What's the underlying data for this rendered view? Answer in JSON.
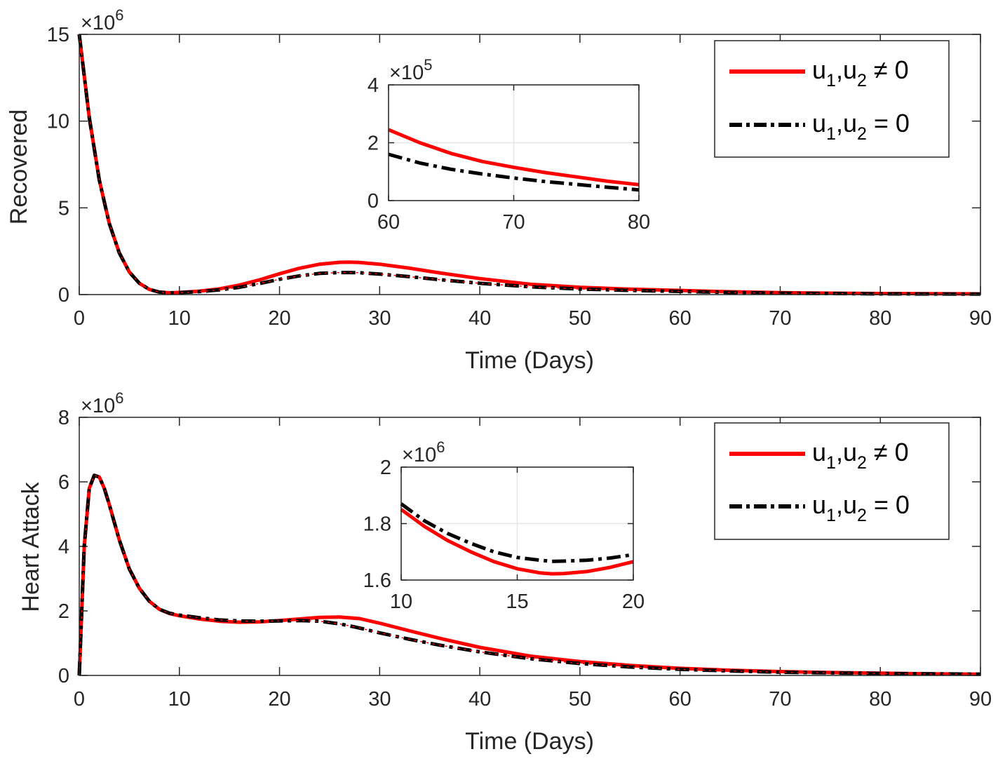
{
  "chart_data": [
    {
      "type": "line",
      "id": "top",
      "ylabel": "Recovered",
      "xlabel": "Time (Days)",
      "xlim": [
        0,
        90
      ],
      "ylim": [
        0,
        15
      ],
      "xticks": [
        "0",
        "10",
        "20",
        "30",
        "40",
        "50",
        "60",
        "70",
        "80",
        "90"
      ],
      "yticks": [
        "0",
        "5",
        "10",
        "15"
      ],
      "exponent_base": "×10",
      "exponent_power": "6",
      "legend": [
        {
          "base": "u",
          "sub1": "1",
          "mid": ",u",
          "sub2": "2",
          "rel": " ≠ 0"
        },
        {
          "base": "u",
          "sub1": "1",
          "mid": ",u",
          "sub2": "2",
          "rel": " = 0"
        }
      ],
      "series": [
        {
          "name": "u1,u2 ≠ 0",
          "color": "#ff0000",
          "style": "solid",
          "x": [
            0,
            1,
            2,
            3,
            4,
            5,
            6,
            7,
            8,
            9,
            10,
            12,
            14,
            16,
            18,
            20,
            22,
            24,
            26,
            27,
            28,
            30,
            33,
            36,
            40,
            45,
            50,
            55,
            60,
            65,
            70,
            75,
            80,
            85,
            90
          ],
          "y": [
            15,
            10.2,
            6.6,
            4.1,
            2.4,
            1.3,
            0.65,
            0.3,
            0.14,
            0.1,
            0.12,
            0.2,
            0.33,
            0.55,
            0.85,
            1.2,
            1.52,
            1.75,
            1.86,
            1.87,
            1.85,
            1.75,
            1.52,
            1.25,
            0.92,
            0.6,
            0.42,
            0.31,
            0.24,
            0.16,
            0.11,
            0.08,
            0.06,
            0.05,
            0.04
          ]
        },
        {
          "name": "u1,u2 = 0",
          "color": "#000000",
          "style": "dashdot",
          "x": [
            0,
            1,
            2,
            3,
            4,
            5,
            6,
            7,
            8,
            9,
            10,
            12,
            14,
            16,
            18,
            20,
            22,
            24,
            26,
            27,
            28,
            30,
            33,
            36,
            40,
            45,
            50,
            55,
            60,
            65,
            70,
            75,
            80,
            85,
            90
          ],
          "y": [
            15,
            10.2,
            6.6,
            4.1,
            2.4,
            1.3,
            0.65,
            0.3,
            0.14,
            0.1,
            0.11,
            0.17,
            0.27,
            0.42,
            0.64,
            0.88,
            1.08,
            1.22,
            1.27,
            1.27,
            1.26,
            1.18,
            1.03,
            0.86,
            0.65,
            0.45,
            0.32,
            0.24,
            0.18,
            0.12,
            0.08,
            0.06,
            0.04,
            0.035,
            0.03
          ]
        }
      ],
      "inset": {
        "xlim": [
          60,
          80
        ],
        "ylim": [
          0,
          4
        ],
        "xticks": [
          "60",
          "70",
          "80"
        ],
        "yticks": [
          "0",
          "2",
          "4"
        ],
        "exponent_base": "×10",
        "exponent_power": "5",
        "series": [
          {
            "color": "#ff0000",
            "style": "solid",
            "x": [
              60,
              62.5,
              65,
              67.5,
              70,
              72.5,
              75,
              77.5,
              80
            ],
            "y": [
              2.45,
              2.0,
              1.63,
              1.35,
              1.15,
              0.97,
              0.82,
              0.67,
              0.55
            ]
          },
          {
            "color": "#000000",
            "style": "dashdot",
            "x": [
              60,
              62.5,
              65,
              67.5,
              70,
              72.5,
              75,
              77.5,
              80
            ],
            "y": [
              1.6,
              1.3,
              1.08,
              0.92,
              0.78,
              0.66,
              0.56,
              0.46,
              0.37
            ]
          }
        ]
      }
    },
    {
      "type": "line",
      "id": "bottom",
      "ylabel": "Heart Attack",
      "xlabel": "Time (Days)",
      "xlim": [
        0,
        90
      ],
      "ylim": [
        0,
        8
      ],
      "xticks": [
        "0",
        "10",
        "20",
        "30",
        "40",
        "50",
        "60",
        "70",
        "80",
        "90"
      ],
      "yticks": [
        "0",
        "2",
        "4",
        "6",
        "8"
      ],
      "exponent_base": "×10",
      "exponent_power": "6",
      "legend": [
        {
          "base": "u",
          "sub1": "1",
          "mid": ",u",
          "sub2": "2",
          "rel": " ≠ 0"
        },
        {
          "base": "u",
          "sub1": "1",
          "mid": ",u",
          "sub2": "2",
          "rel": " = 0"
        }
      ],
      "series": [
        {
          "name": "u1,u2 ≠ 0",
          "color": "#ff0000",
          "style": "solid",
          "x": [
            0,
            0.5,
            1,
            1.5,
            2,
            2.5,
            3,
            4,
            5,
            6,
            7,
            8,
            9,
            10,
            12,
            14,
            16,
            18,
            20,
            22,
            24,
            26,
            28,
            30,
            33,
            36,
            40,
            45,
            50,
            55,
            60,
            65,
            70,
            75,
            80,
            85,
            90
          ],
          "y": [
            0,
            4.0,
            5.8,
            6.2,
            6.15,
            5.8,
            5.3,
            4.2,
            3.3,
            2.7,
            2.3,
            2.05,
            1.92,
            1.85,
            1.75,
            1.68,
            1.65,
            1.66,
            1.7,
            1.75,
            1.8,
            1.81,
            1.76,
            1.62,
            1.38,
            1.15,
            0.87,
            0.6,
            0.43,
            0.31,
            0.22,
            0.16,
            0.12,
            0.09,
            0.07,
            0.05,
            0.04
          ]
        },
        {
          "name": "u1,u2 = 0",
          "color": "#000000",
          "style": "dashdot",
          "x": [
            0,
            0.5,
            1,
            1.5,
            2,
            2.5,
            3,
            4,
            5,
            6,
            7,
            8,
            9,
            10,
            12,
            14,
            16,
            18,
            20,
            22,
            24,
            26,
            28,
            30,
            33,
            36,
            40,
            45,
            50,
            55,
            60,
            65,
            70,
            75,
            80,
            85,
            90
          ],
          "y": [
            0,
            4.0,
            5.8,
            6.2,
            6.15,
            5.8,
            5.3,
            4.2,
            3.3,
            2.7,
            2.3,
            2.05,
            1.93,
            1.87,
            1.79,
            1.72,
            1.69,
            1.68,
            1.69,
            1.7,
            1.68,
            1.6,
            1.47,
            1.32,
            1.12,
            0.94,
            0.73,
            0.52,
            0.37,
            0.26,
            0.19,
            0.14,
            0.1,
            0.08,
            0.06,
            0.05,
            0.04
          ]
        }
      ],
      "inset": {
        "xlim": [
          10,
          20
        ],
        "ylim": [
          1.6,
          2
        ],
        "xticks": [
          "10",
          "15",
          "20"
        ],
        "yticks": [
          "1.6",
          "1.8",
          "2"
        ],
        "exponent_base": "×10",
        "exponent_power": "6",
        "series": [
          {
            "color": "#ff0000",
            "style": "solid",
            "x": [
              10,
              11,
              12,
              13,
              14,
              15,
              16,
              16.5,
              17,
              18,
              19,
              20
            ],
            "y": [
              1.85,
              1.79,
              1.74,
              1.7,
              1.665,
              1.64,
              1.625,
              1.622,
              1.623,
              1.63,
              1.645,
              1.665
            ]
          },
          {
            "color": "#000000",
            "style": "dashdot",
            "x": [
              10,
              11,
              12,
              13,
              14,
              15,
              16,
              16.5,
              17,
              18,
              19,
              20
            ],
            "y": [
              1.87,
              1.81,
              1.765,
              1.73,
              1.7,
              1.68,
              1.67,
              1.666,
              1.667,
              1.67,
              1.678,
              1.69
            ]
          }
        ]
      }
    }
  ]
}
